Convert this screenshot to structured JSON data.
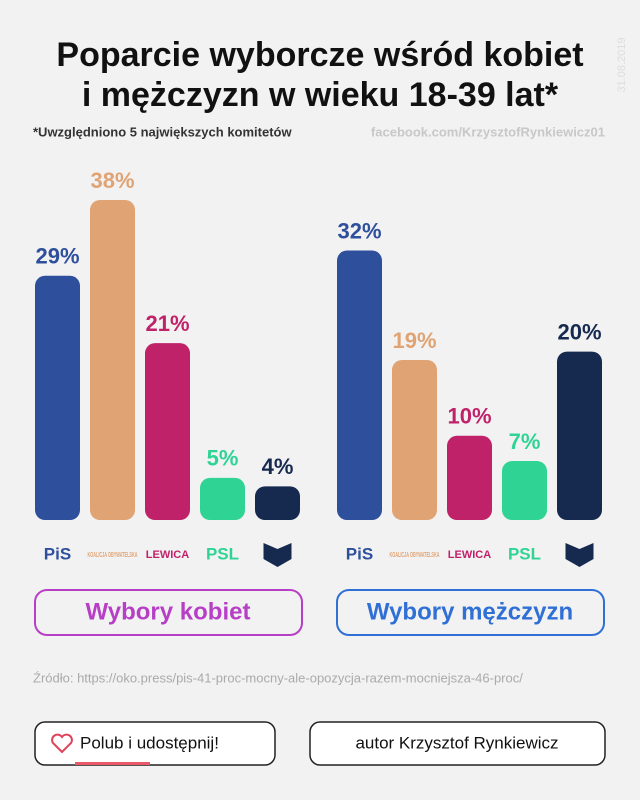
{
  "header": {
    "title_lines": [
      "Poparcie wyborcze wśród kobiet",
      "i mężczyzn w wieku 18-39 lat*"
    ],
    "note": "*Uwzględniono 5 największych komitetów",
    "url": "facebook.com/KrzysztofRynkiewicz01",
    "date": "31.08.2019"
  },
  "chart_data": [
    {
      "type": "bar",
      "title": "Wybory kobiet",
      "categories": [
        "PiS",
        "KOALICJA OBYWATELSKA",
        "LEWICA",
        "PSL",
        null
      ],
      "values": [
        29,
        38,
        21,
        5,
        4
      ],
      "value_labels": [
        "29%",
        "38%",
        "21%",
        "5%",
        "4%"
      ],
      "colors": [
        "#2e4f9c",
        "#e0a374",
        "#c0226a",
        "#2fd495",
        "#16294f"
      ],
      "title_color": "#b63fc6"
    },
    {
      "type": "bar",
      "title": "Wybory mężczyzn",
      "categories": [
        "PiS",
        "KOALICJA OBYWATELSKA",
        "LEWICA",
        "PSL",
        null
      ],
      "values": [
        32,
        19,
        10,
        7,
        20
      ],
      "value_labels": [
        "32%",
        "19%",
        "10%",
        "7%",
        "20%"
      ],
      "colors": [
        "#2e4f9c",
        "#e0a374",
        "#c0226a",
        "#2fd495",
        "#16294f"
      ],
      "title_color": "#2f6fd6"
    }
  ],
  "footer": {
    "source": "Źródło: https://oko.press/pis-41-proc-mocny-ale-opozycja-razem-mocniejsza-46-proc/",
    "like": "Polub i udostępnij!",
    "author": "autor Krzysztof Rynkiewicz"
  }
}
